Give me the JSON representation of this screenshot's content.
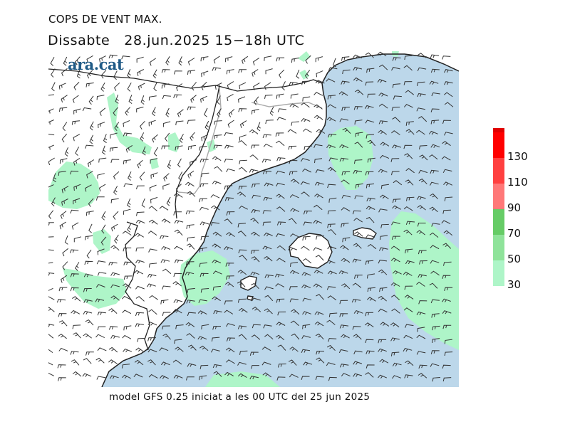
{
  "header": {
    "title": "COPS DE VENT MAX.",
    "subtitle": "Dissabte   28.jun.2025 15−18h UTC"
  },
  "brand": {
    "name": "ara.cat",
    "color": "#1f5a86"
  },
  "footer": {
    "text": "model GFS 0.25 iniciat a les 00 UTC del 25 jun 2025"
  },
  "colors": {
    "sea": "#bcd7ea",
    "land": "#ffffff",
    "coast": "#222222",
    "border": "#aaaaaa",
    "barb": "#333333"
  },
  "legend": {
    "levels": [
      {
        "label": "30",
        "color": "#aef5c8"
      },
      {
        "label": "50",
        "color": "#8fe39a"
      },
      {
        "label": "70",
        "color": "#66cc66"
      },
      {
        "label": "90",
        "color": "#ff7878"
      },
      {
        "label": "110",
        "color": "#ff4040"
      },
      {
        "label": "130",
        "color": "#ff0000"
      }
    ],
    "top_color": "#e00000"
  }
}
